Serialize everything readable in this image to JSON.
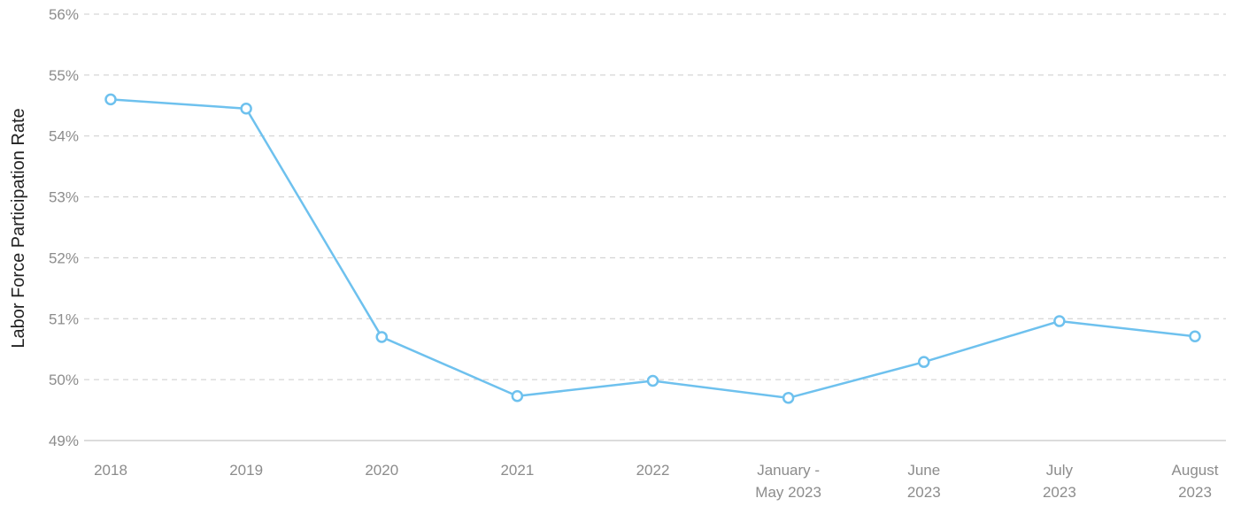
{
  "colors": {
    "line": "#6ec1ee",
    "marker_fill": "#ffffff",
    "grid": "#cccccc",
    "tick_text": "#8c8c8c",
    "axis_title": "#222222"
  },
  "chart_data": {
    "type": "line",
    "title": "",
    "xlabel": "",
    "ylabel": "Labor Force Participation Rate",
    "ylim": [
      49,
      56
    ],
    "y_ticks": [
      "49%",
      "50%",
      "51%",
      "52%",
      "53%",
      "54%",
      "55%",
      "56%"
    ],
    "grid": true,
    "legend": "none",
    "categories": [
      [
        "2018"
      ],
      [
        "2019"
      ],
      [
        "2020"
      ],
      [
        "2021"
      ],
      [
        "2022"
      ],
      [
        "January -",
        "May 2023"
      ],
      [
        "June",
        "2023"
      ],
      [
        "July",
        "2023"
      ],
      [
        "August",
        "2023"
      ]
    ],
    "series": [
      {
        "values": [
          54.6,
          54.45,
          50.7,
          49.73,
          49.98,
          49.7,
          50.29,
          50.96,
          50.71
        ]
      }
    ]
  }
}
